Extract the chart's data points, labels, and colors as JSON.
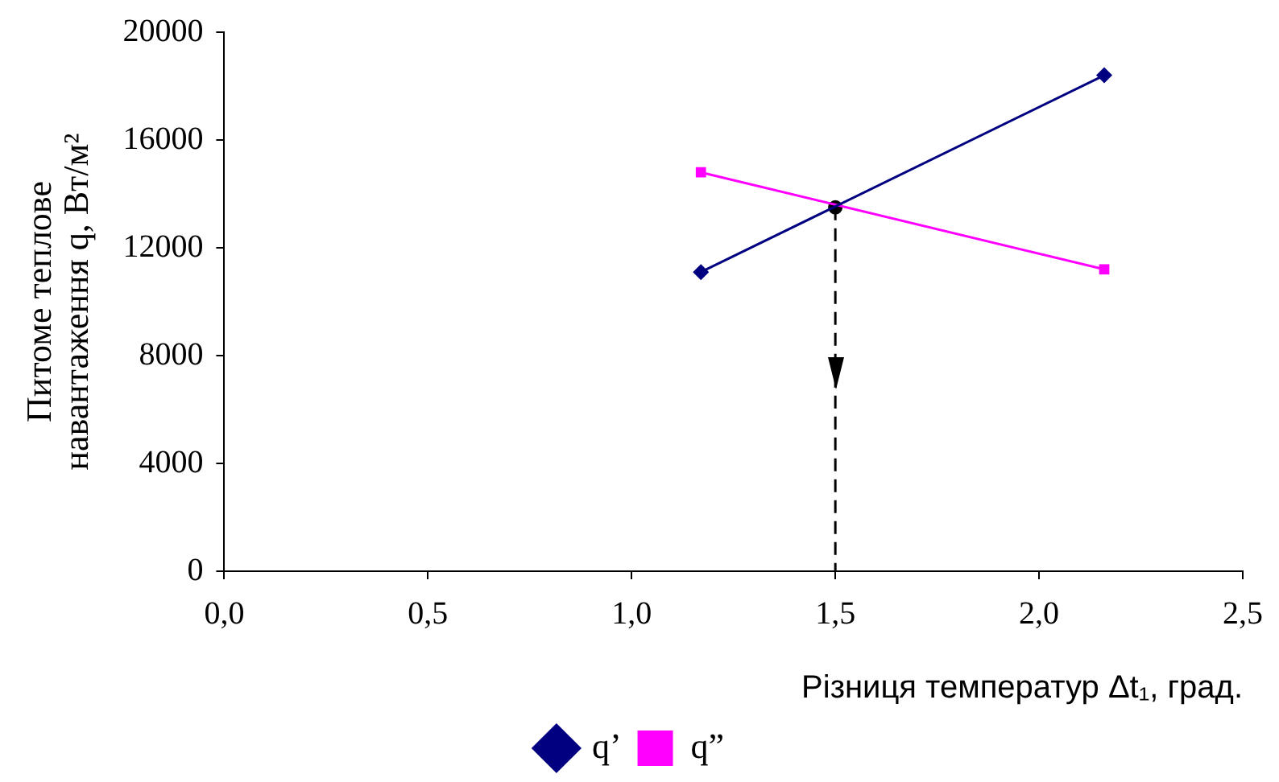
{
  "chart_data": {
    "type": "line",
    "xlabel": "Різниця температур Δt₁, град.",
    "ylabel": [
      "Питоме теплове",
      "навантаження q, Вт/м²"
    ],
    "series": [
      {
        "name": "q’",
        "color": "#000080",
        "x": [
          1.17,
          2.16
        ],
        "values": [
          11100,
          18400
        ],
        "marker": "diamond"
      },
      {
        "name": "q”",
        "color": "#ff00ff",
        "x": [
          1.17,
          2.16
        ],
        "values": [
          14800,
          11200
        ],
        "marker": "square"
      },
      {
        "type": "line",
        "color": "#000000",
        "x": [
          1.5,
          1.5
        ],
        "values": [
          13500,
          0
        ],
        "marker": "none",
        "line_style": "dashed"
      },
      {
        "type": "scatter",
        "color": "#000000",
        "x": [
          1.5
        ],
        "values": [
          13500
        ],
        "marker": "circle"
      }
    ],
    "xlim": [
      0,
      2.5
    ],
    "xticks": [
      {
        "value": 0,
        "label": "0,0"
      },
      {
        "value": 0.5,
        "label": "0,5"
      },
      {
        "value": 1,
        "label": "1,0"
      },
      {
        "value": 1.5,
        "label": "1,5"
      },
      {
        "value": 2,
        "label": "2,0"
      },
      {
        "value": 2.5,
        "label": "2,5"
      }
    ],
    "ylim": [
      0,
      20000
    ],
    "yticks": [
      0,
      4000,
      8000,
      12000,
      16000,
      20000
    ],
    "grid": false,
    "legend": "bottom"
  }
}
